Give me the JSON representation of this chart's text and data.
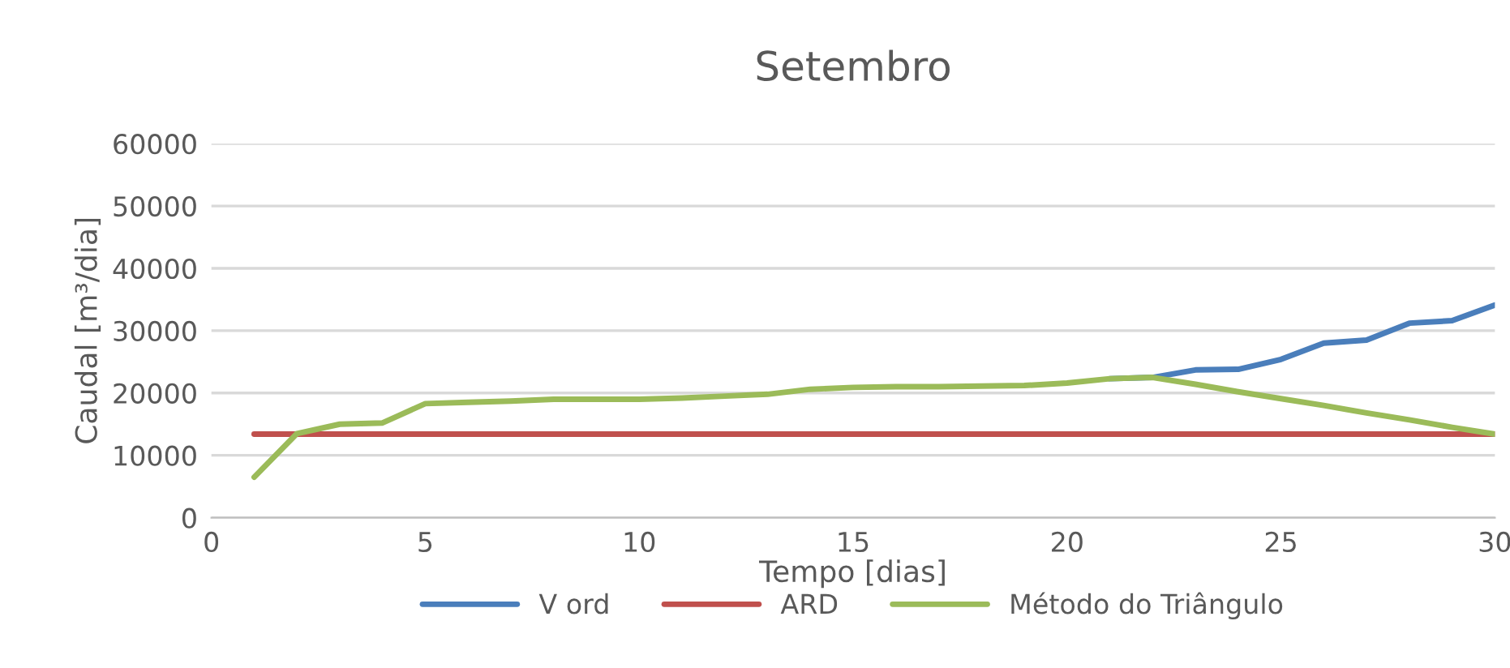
{
  "chart_data": {
    "type": "line",
    "title": "Setembro",
    "xlabel": "Tempo [dias]",
    "ylabel": "Caudal [m³/dia]",
    "x": [
      1,
      2,
      3,
      4,
      5,
      6,
      7,
      8,
      9,
      10,
      11,
      12,
      13,
      14,
      15,
      16,
      17,
      18,
      19,
      20,
      21,
      22,
      23,
      24,
      25,
      26,
      27,
      28,
      29,
      30
    ],
    "series": [
      {
        "name": "V ord",
        "color": "#4a7ebb",
        "values": [
          null,
          null,
          null,
          null,
          null,
          null,
          null,
          null,
          null,
          null,
          null,
          null,
          null,
          null,
          null,
          null,
          null,
          null,
          null,
          null,
          22300,
          22500,
          23700,
          23800,
          25400,
          28000,
          28500,
          31200,
          31600,
          34100
        ]
      },
      {
        "name": "ARD",
        "color": "#c0504d",
        "values": [
          13400,
          13400,
          13400,
          13400,
          13400,
          13400,
          13400,
          13400,
          13400,
          13400,
          13400,
          13400,
          13400,
          13400,
          13400,
          13400,
          13400,
          13400,
          13400,
          13400,
          13400,
          13400,
          13400,
          13400,
          13400,
          13400,
          13400,
          13400,
          13400,
          13400
        ]
      },
      {
        "name": "Método do Triângulo",
        "color": "#9bbb59",
        "values": [
          6500,
          13500,
          15000,
          15200,
          18300,
          18500,
          18700,
          19000,
          19000,
          19000,
          19200,
          19500,
          19800,
          20600,
          20900,
          21000,
          21000,
          21100,
          21200,
          21600,
          22300,
          22500,
          21400,
          20200,
          19100,
          18000,
          16800,
          15700,
          14500,
          13400
        ]
      }
    ],
    "xlim": [
      0,
      30
    ],
    "xticks": [
      0,
      5,
      10,
      15,
      20,
      25,
      30
    ],
    "ylim": [
      0,
      60000
    ],
    "yticks": [
      0,
      10000,
      20000,
      30000,
      40000,
      50000,
      60000
    ],
    "grid": "y",
    "legend": "bottom",
    "marker": "none",
    "line_style": "solid"
  }
}
